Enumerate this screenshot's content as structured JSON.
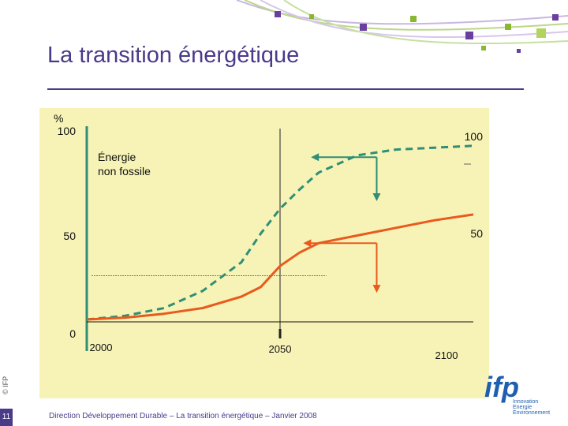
{
  "title": "La transition énergétique",
  "footer": "Direction Développement Durable – La transition énergétique – Janvier 2008",
  "page_number": "11",
  "copyright": "© IFP",
  "logo": {
    "text": "ifp",
    "tagline": [
      "Innovation",
      "Energie",
      "Environnement"
    ]
  },
  "colors": {
    "title": "#4a3a8a",
    "chart_bg": "#f7f3b6",
    "dashed_series": "#2f8e75",
    "solid_series": "#e85a1e"
  },
  "chart_data": {
    "type": "line",
    "xlim": [
      2000,
      2100
    ],
    "ylim": [
      0,
      100
    ],
    "y_unit_label": "%",
    "x_ticks": [
      2000,
      2050,
      2100
    ],
    "y_ticks_left": [
      0,
      50,
      100
    ],
    "y_ticks_right": [
      50,
      100
    ],
    "annotations": [
      "Énergie",
      "non fossile"
    ],
    "series": [
      {
        "style": "dashed",
        "points": [
          [
            2000,
            0
          ],
          [
            2010,
            2
          ],
          [
            2020,
            6
          ],
          [
            2030,
            15
          ],
          [
            2040,
            30
          ],
          [
            2045,
            45
          ],
          [
            2050,
            58
          ],
          [
            2055,
            68
          ],
          [
            2060,
            77
          ],
          [
            2070,
            86
          ],
          [
            2080,
            89
          ],
          [
            2090,
            90
          ],
          [
            2100,
            91
          ]
        ]
      },
      {
        "style": "solid",
        "points": [
          [
            2000,
            0
          ],
          [
            2010,
            1
          ],
          [
            2020,
            3
          ],
          [
            2030,
            6
          ],
          [
            2040,
            12
          ],
          [
            2045,
            17
          ],
          [
            2050,
            28
          ],
          [
            2055,
            35
          ],
          [
            2060,
            40
          ],
          [
            2070,
            44
          ],
          [
            2080,
            48
          ],
          [
            2090,
            52
          ],
          [
            2100,
            55
          ]
        ]
      }
    ],
    "arrows": [
      {
        "color": "dashed_series",
        "at": [
          2075,
          85
        ],
        "left_to": 2058,
        "down_to": 62
      },
      {
        "color": "solid_series",
        "at": [
          2075,
          40
        ],
        "left_to": 2056,
        "down_to": 14
      }
    ],
    "reference_lines": {
      "horizontal_dashed_y": 23,
      "vertical_x": 2050
    }
  }
}
